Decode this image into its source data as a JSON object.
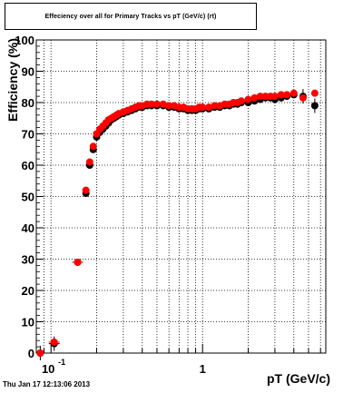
{
  "title": "Effeciency over all for Primary Tracks vs pT (GeV/c) (rt)",
  "timestamp": "Thu Jan 17 12:13:06 2013",
  "chart_data": {
    "type": "scatter",
    "xlabel": "pT (GeV/c)",
    "ylabel": "Efficiency (%)",
    "xscale": "log",
    "xlim": [
      0.08,
      6.5
    ],
    "ylim": [
      0,
      100
    ],
    "yticks": [
      0,
      10,
      20,
      30,
      40,
      50,
      60,
      70,
      80,
      90,
      100
    ],
    "xtick_labels": [
      {
        "value": 0.1,
        "base": "10",
        "exp": "-1"
      },
      {
        "value": 1,
        "base": "1",
        "exp": ""
      }
    ],
    "grid": true,
    "series": [
      {
        "color": "#000000",
        "marker": "circle",
        "x": [
          0.085,
          0.105,
          0.15,
          0.17,
          0.18,
          0.19,
          0.2,
          0.21,
          0.22,
          0.23,
          0.24,
          0.25,
          0.26,
          0.27,
          0.28,
          0.3,
          0.32,
          0.34,
          0.36,
          0.38,
          0.4,
          0.43,
          0.46,
          0.5,
          0.55,
          0.6,
          0.65,
          0.7,
          0.75,
          0.8,
          0.85,
          0.9,
          0.95,
          1.0,
          1.1,
          1.2,
          1.3,
          1.4,
          1.5,
          1.6,
          1.7,
          1.8,
          2.0,
          2.2,
          2.4,
          2.6,
          2.8,
          3.0,
          3.3,
          3.6,
          4.0,
          4.6,
          5.5
        ],
        "y": [
          0,
          3,
          29,
          51,
          60,
          65,
          69,
          70.5,
          71.5,
          72.5,
          73.5,
          74.5,
          75,
          75.5,
          76,
          76.5,
          77,
          77.5,
          78,
          78.5,
          78.5,
          79,
          79,
          79,
          79,
          78.5,
          78.5,
          78,
          78,
          77.5,
          77.5,
          77.5,
          78,
          78,
          78,
          78.5,
          78.5,
          79,
          79,
          79.5,
          79.5,
          80,
          80,
          80.5,
          81,
          81.5,
          81.5,
          81,
          81.5,
          82,
          82.5,
          82,
          79
        ]
      },
      {
        "color": "#ff0000",
        "marker": "circle",
        "x": [
          0.085,
          0.105,
          0.15,
          0.17,
          0.18,
          0.19,
          0.2,
          0.21,
          0.22,
          0.23,
          0.24,
          0.25,
          0.26,
          0.27,
          0.28,
          0.3,
          0.32,
          0.34,
          0.36,
          0.38,
          0.4,
          0.43,
          0.46,
          0.5,
          0.55,
          0.6,
          0.65,
          0.7,
          0.75,
          0.8,
          0.85,
          0.9,
          0.95,
          1.0,
          1.1,
          1.2,
          1.3,
          1.4,
          1.5,
          1.6,
          1.7,
          1.8,
          2.0,
          2.2,
          2.4,
          2.6,
          2.8,
          3.0,
          3.3,
          3.6,
          4.0,
          4.6,
          5.5
        ],
        "y": [
          0,
          3.5,
          29,
          52,
          61,
          66,
          70,
          71.5,
          72.5,
          73.5,
          74.5,
          75,
          75.5,
          76,
          76.5,
          77,
          77.5,
          78,
          78.5,
          79,
          79,
          79.5,
          79.5,
          79.5,
          79.5,
          79,
          79,
          78.5,
          78.5,
          78,
          78,
          78,
          78.5,
          78.5,
          78.5,
          79,
          79,
          79.5,
          79.5,
          80,
          80,
          80.5,
          81,
          81.5,
          82,
          82,
          82,
          82,
          82.5,
          82.5,
          83,
          81.5,
          83
        ]
      }
    ]
  }
}
